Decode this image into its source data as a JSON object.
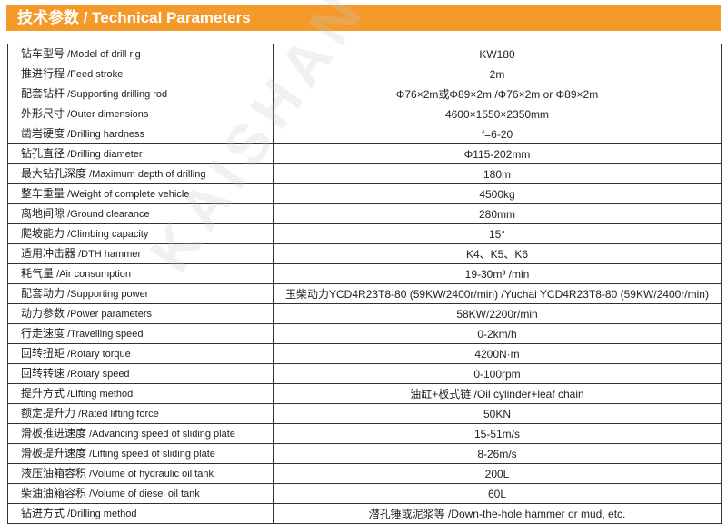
{
  "header": {
    "title": "技术参数 / Technical Parameters"
  },
  "watermark": "KAISHAN",
  "accent_color": "#f39a2b",
  "rows": [
    {
      "zh": "钻车型号",
      "en": " /Model of drill rig",
      "value": "KW180"
    },
    {
      "zh": "推进行程",
      "en": " /Feed stroke",
      "value": "2m"
    },
    {
      "zh": "配套钻杆",
      "en": " /Supporting drilling rod",
      "value": "Φ76×2m或Φ89×2m /Φ76×2m or Φ89×2m"
    },
    {
      "zh": "外形尺寸",
      "en": " /Outer dimensions",
      "value": "4600×1550×2350mm"
    },
    {
      "zh": "凿岩硬度",
      "en": " /Drilling hardness",
      "value": "f=6-20"
    },
    {
      "zh": "钻孔直径",
      "en": " /Drilling diameter",
      "value": "Φ115-202mm"
    },
    {
      "zh": "最大钻孔深度",
      "en": " /Maximum depth of drilling",
      "value": "180m"
    },
    {
      "zh": "整车重量",
      "en": " /Weight of complete vehicle",
      "value": "4500kg"
    },
    {
      "zh": "离地间隙",
      "en": " /Ground clearance",
      "value": "280mm"
    },
    {
      "zh": "爬坡能力",
      "en": " /Climbing capacity",
      "value": "15°"
    },
    {
      "zh": "适用冲击器",
      "en": " /DTH hammer",
      "value": "K4、K5、K6"
    },
    {
      "zh": "耗气量",
      "en": " /Air consumption",
      "value": "19-30m³ /min"
    },
    {
      "zh": "配套动力",
      "en": " /Supporting power",
      "value": "玉柴动力YCD4R23T8-80 (59KW/2400r/min) /Yuchai YCD4R23T8-80 (59KW/2400r/min)"
    },
    {
      "zh": "动力参数",
      "en": " /Power parameters",
      "value": "58KW/2200r/min"
    },
    {
      "zh": "行走速度",
      "en": " /Travelling speed",
      "value": "0-2km/h"
    },
    {
      "zh": "回转扭矩",
      "en": " /Rotary torque",
      "value": "4200N·m"
    },
    {
      "zh": "回转转速",
      "en": " /Rotary speed",
      "value": "0-100rpm"
    },
    {
      "zh": "提升方式",
      "en": " /Lifting method",
      "value": "油缸+板式链 /Oil cylinder+leaf chain"
    },
    {
      "zh": "额定提升力",
      "en": " /Rated lifting force",
      "value": "50KN"
    },
    {
      "zh": "滑板推进速度",
      "en": " /Advancing speed of sliding plate",
      "value": "15-51m/s"
    },
    {
      "zh": "滑板提升速度",
      "en": " /Lifting speed of sliding plate",
      "value": "8-26m/s"
    },
    {
      "zh": "液压油箱容积",
      "en": " /Volume of hydraulic oil tank",
      "value": "200L"
    },
    {
      "zh": "柴油油箱容积",
      "en": " /Volume of diesel oil tank",
      "value": "60L"
    },
    {
      "zh": "钻进方式",
      "en": " /Drilling method",
      "value": "潜孔锤或泥浆等 /Down-the-hole hammer or mud, etc."
    }
  ]
}
